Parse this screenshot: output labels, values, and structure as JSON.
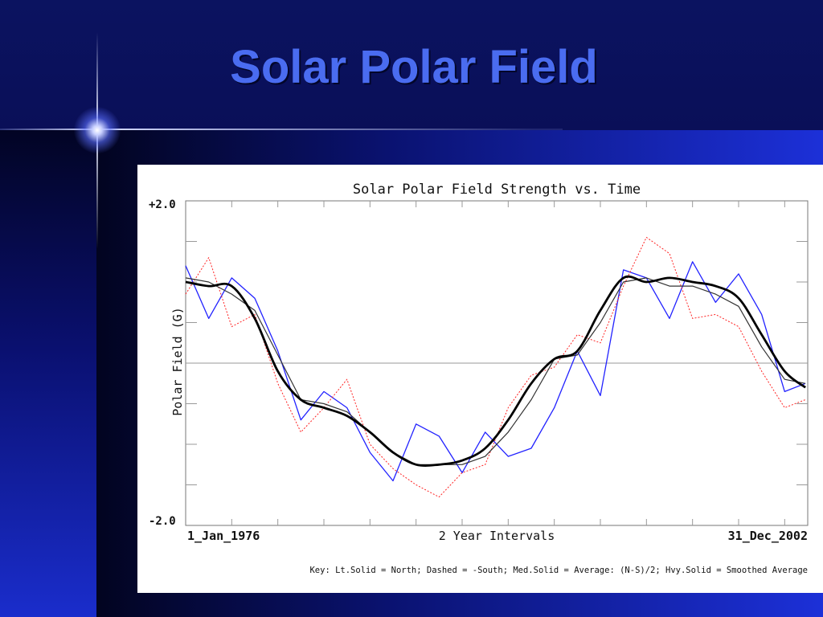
{
  "slide": {
    "title": "Solar Polar Field"
  },
  "colors": {
    "background": "#0a0f55",
    "title": "#4a6cf0",
    "north": "#2222ff",
    "south": "#ff2222",
    "average": "#333333",
    "smoothed": "#000000"
  },
  "chart_data": {
    "type": "line",
    "title": "Solar Polar Field Strength vs. Time",
    "ylabel": "Polar Field (G)",
    "xlabel": "2 Year Intervals",
    "x_start_label": "1_Jan_1976",
    "x_end_label": "31_Dec_2002",
    "y_top_label": "+2.0",
    "y_bottom_label": "-2.0",
    "ylim": [
      -2.0,
      2.0
    ],
    "xlim": [
      1976.0,
      2003.0
    ],
    "grid": "horizontal ticks",
    "key": "Key: Lt.Solid = North; Dashed = -South; Med.Solid = Average: (N-S)/2; Hvy.Solid = Smoothed Average",
    "x": [
      1976.0,
      1977.0,
      1978.0,
      1979.0,
      1980.0,
      1981.0,
      1982.0,
      1983.0,
      1984.0,
      1985.0,
      1986.0,
      1987.0,
      1988.0,
      1989.0,
      1990.0,
      1991.0,
      1992.0,
      1993.0,
      1994.0,
      1995.0,
      1996.0,
      1997.0,
      1998.0,
      1999.0,
      2000.0,
      2001.0,
      2002.0,
      2002.9
    ],
    "series": [
      {
        "name": "North",
        "style": "light-solid",
        "values": [
          1.2,
          0.55,
          1.05,
          0.8,
          0.15,
          -0.7,
          -0.35,
          -0.55,
          -1.1,
          -1.45,
          -0.75,
          -0.9,
          -1.35,
          -0.85,
          -1.15,
          -1.05,
          -0.55,
          0.15,
          -0.4,
          1.15,
          1.05,
          0.55,
          1.25,
          0.75,
          1.1,
          0.6,
          -0.35,
          -0.25
        ]
      },
      {
        "name": "-South",
        "style": "dashed",
        "values": [
          0.85,
          1.3,
          0.45,
          0.6,
          -0.25,
          -0.85,
          -0.55,
          -0.2,
          -1.0,
          -1.3,
          -1.5,
          -1.65,
          -1.35,
          -1.25,
          -0.55,
          -0.15,
          -0.05,
          0.35,
          0.25,
          0.95,
          1.55,
          1.35,
          0.55,
          0.6,
          0.45,
          -0.1,
          -0.55,
          -0.45
        ]
      },
      {
        "name": "Average: (N-S)/2",
        "style": "medium-solid",
        "values": [
          1.05,
          1.0,
          0.85,
          0.65,
          0.1,
          -0.45,
          -0.5,
          -0.6,
          -0.85,
          -1.1,
          -1.25,
          -1.25,
          -1.25,
          -1.15,
          -0.85,
          -0.45,
          0.05,
          0.1,
          0.5,
          1.0,
          1.05,
          0.95,
          0.95,
          0.85,
          0.7,
          0.2,
          -0.2,
          -0.25
        ]
      },
      {
        "name": "Smoothed Average",
        "style": "heavy-solid",
        "values": [
          1.0,
          0.95,
          0.95,
          0.55,
          -0.1,
          -0.45,
          -0.55,
          -0.65,
          -0.85,
          -1.1,
          -1.25,
          -1.25,
          -1.2,
          -1.05,
          -0.7,
          -0.25,
          0.05,
          0.15,
          0.65,
          1.05,
          1.0,
          1.05,
          1.0,
          0.95,
          0.8,
          0.35,
          -0.1,
          -0.3
        ]
      }
    ]
  }
}
